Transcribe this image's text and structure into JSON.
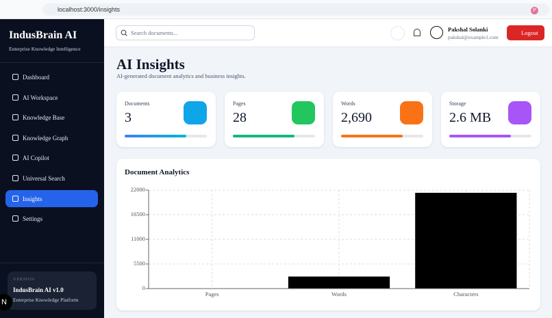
{
  "browser": {
    "url": "localhost:3000/insights",
    "profile": "P"
  },
  "sidebar": {
    "brand": "IndusBrain AI",
    "tagline": "Enterprise Knowledge Intelligence",
    "nav": [
      "Dashboard",
      "AI Workspace",
      "Knowledge Base",
      "Knowledge Graph",
      "AI Copilot",
      "Universal Search",
      "Insights",
      "Settings"
    ],
    "version_label": "VERSION",
    "version": "IndusBrain AI v1.0",
    "version_sub": "Enterprise Knowledge Platform",
    "badge": "N"
  },
  "header": {
    "search_placeholder": "Search documents...",
    "user_name": "Pakshal Solanki",
    "user_email": "pakshal@example1.com",
    "logout": "Logout"
  },
  "page": {
    "title": "AI Insights",
    "subtitle": "AI-generated document analytics and business insights."
  },
  "stats": [
    {
      "label": "Documents",
      "value": "3"
    },
    {
      "label": "Pages",
      "value": "28"
    },
    {
      "label": "Words",
      "value": "2,690"
    },
    {
      "label": "Storage",
      "value": "2.6 MB"
    }
  ],
  "chart_data": {
    "type": "bar",
    "title": "Document Analytics",
    "categories": [
      "Pages",
      "Words",
      "Characters"
    ],
    "values": [
      28,
      2690,
      21400
    ],
    "color": "#000000",
    "ylim": [
      0,
      22000
    ],
    "yticks": [
      0,
      5500,
      11000,
      16500,
      22000
    ],
    "grid": true
  }
}
